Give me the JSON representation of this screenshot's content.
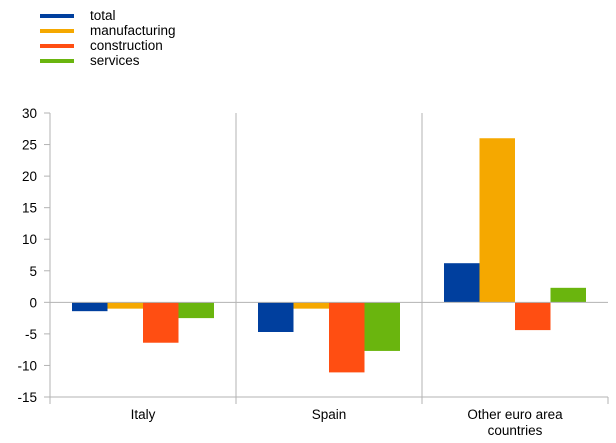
{
  "chart_data": {
    "type": "bar",
    "categories": [
      "Italy",
      "Spain",
      "Other euro area countries"
    ],
    "category_lines": [
      [
        "Italy"
      ],
      [
        "Spain"
      ],
      [
        "Other euro area",
        "countries"
      ]
    ],
    "series": [
      {
        "name": "total",
        "color": "#003f9e",
        "values": [
          -1.4,
          -4.7,
          6.2
        ]
      },
      {
        "name": "manufacturing",
        "color": "#f5a800",
        "values": [
          -1.0,
          -1.0,
          26.0
        ]
      },
      {
        "name": "construction",
        "color": "#ff4e12",
        "values": [
          -6.4,
          -11.1,
          -4.4
        ]
      },
      {
        "name": "services",
        "color": "#6ab50e",
        "values": [
          -2.5,
          -7.7,
          2.3
        ]
      }
    ],
    "ylim": [
      -15,
      30
    ],
    "yticks": [
      -15,
      -10,
      -5,
      0,
      5,
      10,
      15,
      20,
      25,
      30
    ],
    "title": "",
    "xlabel": "",
    "ylabel": "",
    "legend": "top-left",
    "grid": "vertical category separators"
  }
}
